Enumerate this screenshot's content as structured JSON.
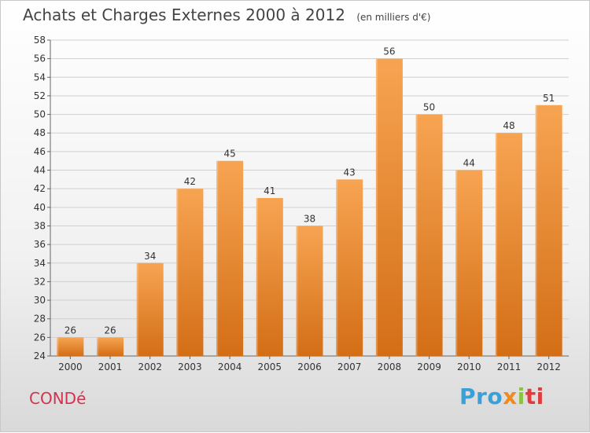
{
  "header": {
    "title": "Achats et Charges Externes 2000 à 2012",
    "unit": "(en milliers d'€)"
  },
  "footer": {
    "commune": "CONDé",
    "logo": [
      "Pro",
      "x",
      "i",
      "ti"
    ]
  },
  "colors": {
    "bar_top": "#f7a452",
    "bar_bottom": "#d36e16",
    "grid": "#d0d0d0",
    "title": "#444444",
    "commune": "#d2334f"
  },
  "chart_data": {
    "type": "bar",
    "title": "Achats et Charges Externes 2000 à 2012",
    "subtitle": "(en milliers d'€)",
    "categories": [
      "2000",
      "2001",
      "2002",
      "2003",
      "2004",
      "2005",
      "2006",
      "2007",
      "2008",
      "2009",
      "2010",
      "2011",
      "2012"
    ],
    "values": [
      26,
      26,
      34,
      42,
      45,
      41,
      38,
      43,
      56,
      50,
      44,
      48,
      51
    ],
    "ylim": [
      24,
      58
    ],
    "yticks": [
      24,
      26,
      28,
      30,
      32,
      34,
      36,
      38,
      40,
      42,
      44,
      46,
      48,
      50,
      52,
      54,
      56,
      58
    ],
    "grid": true,
    "xlabel": "",
    "ylabel": ""
  }
}
